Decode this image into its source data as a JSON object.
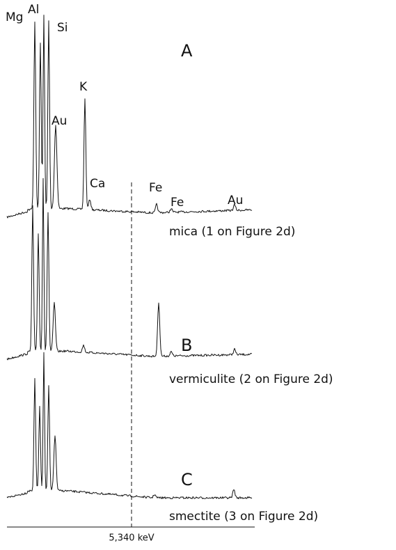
{
  "figure": {
    "panels": [
      {
        "letter": "A",
        "caption": "mica (1 on Figure 2d)",
        "peak_labels": [
          "Mg",
          "Al",
          "Si",
          "K",
          "Au",
          "Ca",
          "Fe",
          "Fe",
          "Au"
        ]
      },
      {
        "letter": "B",
        "caption": "vermiculite (2 on Figure 2d)"
      },
      {
        "letter": "C",
        "caption": "smectite (3 on Figure 2d)"
      }
    ],
    "marker_label": "5,340 keV"
  }
}
